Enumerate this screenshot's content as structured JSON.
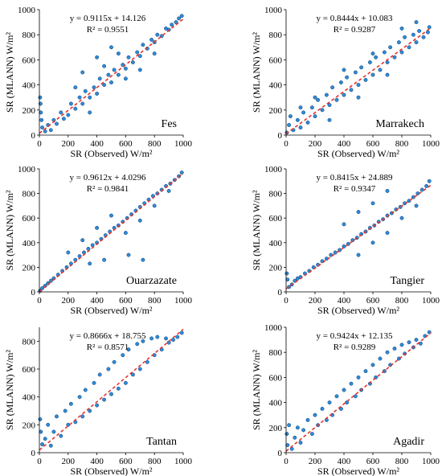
{
  "figure": {
    "panel_positions": [
      "top-left",
      "top-right",
      "middle-left",
      "middle-right",
      "bottom-left",
      "bottom-right"
    ],
    "marker_fill": "#2e8bd8",
    "marker_edge": "#0b3b6e",
    "fit_line_color": "#e3342f"
  },
  "chart_data": [
    {
      "type": "scatter",
      "site": "Fes",
      "equation": "y = 0.9115x + 14.126",
      "r2": "R² = 0.9551",
      "xlabel": "SR (Observed) W/m²",
      "ylabel": "SR (MLANN) W/m²",
      "xlim": [
        0,
        1000
      ],
      "ylim": [
        0,
        1000
      ],
      "xticks": [
        0,
        200,
        400,
        600,
        800,
        1000
      ],
      "yticks": [
        0,
        200,
        400,
        600,
        800,
        1000
      ],
      "fit": {
        "slope": 0.9115,
        "intercept": 14.126
      },
      "grid": false,
      "points": [
        [
          5,
          300
        ],
        [
          8,
          250
        ],
        [
          10,
          180
        ],
        [
          15,
          120
        ],
        [
          20,
          60
        ],
        [
          40,
          30
        ],
        [
          60,
          80
        ],
        [
          80,
          40
        ],
        [
          100,
          120
        ],
        [
          120,
          90
        ],
        [
          150,
          180
        ],
        [
          170,
          130
        ],
        [
          200,
          160
        ],
        [
          220,
          250
        ],
        [
          250,
          210
        ],
        [
          280,
          300
        ],
        [
          300,
          250
        ],
        [
          320,
          350
        ],
        [
          350,
          300
        ],
        [
          380,
          380
        ],
        [
          400,
          330
        ],
        [
          420,
          450
        ],
        [
          450,
          400
        ],
        [
          480,
          480
        ],
        [
          500,
          420
        ],
        [
          520,
          520
        ],
        [
          550,
          480
        ],
        [
          580,
          560
        ],
        [
          600,
          530
        ],
        [
          620,
          620
        ],
        [
          650,
          580
        ],
        [
          680,
          660
        ],
        [
          700,
          630
        ],
        [
          720,
          720
        ],
        [
          750,
          690
        ],
        [
          780,
          760
        ],
        [
          800,
          740
        ],
        [
          820,
          800
        ],
        [
          850,
          790
        ],
        [
          880,
          850
        ],
        [
          900,
          840
        ],
        [
          920,
          880
        ],
        [
          950,
          900
        ],
        [
          970,
          930
        ],
        [
          990,
          950
        ],
        [
          300,
          500
        ],
        [
          400,
          620
        ],
        [
          500,
          700
        ],
        [
          600,
          450
        ],
        [
          700,
          520
        ],
        [
          800,
          650
        ],
        [
          250,
          380
        ],
        [
          350,
          180
        ],
        [
          450,
          550
        ],
        [
          550,
          650
        ]
      ]
    },
    {
      "type": "scatter",
      "site": "Marrakech",
      "equation": "y = 0.8444x + 10.083",
      "r2": "R² = 0.9287",
      "xlabel": "SR (Observed) W/m²",
      "ylabel": "SR (MLANN) W/m²",
      "xlim": [
        0,
        1000
      ],
      "ylim": [
        0,
        1000
      ],
      "xticks": [
        0,
        200,
        400,
        600,
        800,
        1000
      ],
      "yticks": [
        0,
        200,
        400,
        600,
        800,
        1000
      ],
      "fit": {
        "slope": 0.8444,
        "intercept": 10.083
      },
      "grid": false,
      "points": [
        [
          5,
          20
        ],
        [
          20,
          80
        ],
        [
          30,
          150
        ],
        [
          50,
          40
        ],
        [
          80,
          120
        ],
        [
          100,
          60
        ],
        [
          120,
          180
        ],
        [
          150,
          100
        ],
        [
          180,
          220
        ],
        [
          200,
          150
        ],
        [
          220,
          280
        ],
        [
          250,
          200
        ],
        [
          280,
          320
        ],
        [
          300,
          240
        ],
        [
          320,
          380
        ],
        [
          350,
          280
        ],
        [
          380,
          420
        ],
        [
          400,
          320
        ],
        [
          420,
          460
        ],
        [
          450,
          360
        ],
        [
          480,
          500
        ],
        [
          500,
          400
        ],
        [
          520,
          540
        ],
        [
          550,
          440
        ],
        [
          580,
          580
        ],
        [
          600,
          480
        ],
        [
          620,
          620
        ],
        [
          650,
          520
        ],
        [
          680,
          660
        ],
        [
          700,
          580
        ],
        [
          720,
          700
        ],
        [
          750,
          620
        ],
        [
          780,
          740
        ],
        [
          800,
          660
        ],
        [
          820,
          780
        ],
        [
          850,
          700
        ],
        [
          880,
          800
        ],
        [
          900,
          740
        ],
        [
          920,
          830
        ],
        [
          950,
          780
        ],
        [
          980,
          820
        ],
        [
          990,
          860
        ],
        [
          100,
          220
        ],
        [
          200,
          300
        ],
        [
          300,
          120
        ],
        [
          400,
          520
        ],
        [
          500,
          300
        ],
        [
          600,
          650
        ],
        [
          700,
          480
        ],
        [
          800,
          850
        ],
        [
          900,
          900
        ]
      ]
    },
    {
      "type": "scatter",
      "site": "Ouarzazate",
      "equation": "y = 0.9612x + 4.0296",
      "r2": "R² = 0.9841",
      "xlabel": "SR (Observed) W/m²",
      "ylabel": "SR (MLANN) W/m²",
      "xlim": [
        0,
        1000
      ],
      "ylim": [
        0,
        1000
      ],
      "xticks": [
        0,
        200,
        400,
        600,
        800,
        1000
      ],
      "yticks": [
        0,
        200,
        400,
        600,
        800,
        1000
      ],
      "fit": {
        "slope": 0.9612,
        "intercept": 4.0296
      },
      "grid": false,
      "points": [
        [
          5,
          10
        ],
        [
          20,
          30
        ],
        [
          40,
          50
        ],
        [
          60,
          70
        ],
        [
          80,
          90
        ],
        [
          100,
          110
        ],
        [
          130,
          140
        ],
        [
          160,
          170
        ],
        [
          190,
          200
        ],
        [
          220,
          230
        ],
        [
          250,
          260
        ],
        [
          280,
          290
        ],
        [
          310,
          320
        ],
        [
          340,
          350
        ],
        [
          370,
          380
        ],
        [
          400,
          400
        ],
        [
          430,
          430
        ],
        [
          460,
          460
        ],
        [
          490,
          490
        ],
        [
          520,
          520
        ],
        [
          550,
          540
        ],
        [
          580,
          570
        ],
        [
          610,
          600
        ],
        [
          640,
          630
        ],
        [
          670,
          660
        ],
        [
          700,
          690
        ],
        [
          730,
          720
        ],
        [
          760,
          750
        ],
        [
          790,
          780
        ],
        [
          820,
          800
        ],
        [
          850,
          830
        ],
        [
          880,
          860
        ],
        [
          910,
          880
        ],
        [
          940,
          910
        ],
        [
          970,
          940
        ],
        [
          990,
          970
        ],
        [
          200,
          320
        ],
        [
          300,
          420
        ],
        [
          400,
          520
        ],
        [
          500,
          620
        ],
        [
          600,
          480
        ],
        [
          700,
          580
        ],
        [
          800,
          700
        ],
        [
          900,
          820
        ],
        [
          620,
          300
        ],
        [
          720,
          260
        ],
        [
          450,
          260
        ],
        [
          350,
          230
        ]
      ]
    },
    {
      "type": "scatter",
      "site": "Tangier",
      "equation": "y = 0.8415x + 24.889",
      "r2": "R² = 0.9347",
      "xlabel": "SR (Observed) W/m²",
      "ylabel": "SR (MLANN) W/m²",
      "xlim": [
        0,
        1000
      ],
      "ylim": [
        0,
        1000
      ],
      "xticks": [
        0,
        200,
        400,
        600,
        800,
        1000
      ],
      "yticks": [
        0,
        200,
        400,
        600,
        800,
        1000
      ],
      "fit": {
        "slope": 0.8415,
        "intercept": 24.889
      },
      "grid": false,
      "points": [
        [
          5,
          150
        ],
        [
          10,
          100
        ],
        [
          20,
          40
        ],
        [
          40,
          60
        ],
        [
          60,
          90
        ],
        [
          80,
          110
        ],
        [
          100,
          120
        ],
        [
          130,
          150
        ],
        [
          160,
          170
        ],
        [
          190,
          200
        ],
        [
          220,
          220
        ],
        [
          250,
          250
        ],
        [
          280,
          270
        ],
        [
          310,
          300
        ],
        [
          340,
          320
        ],
        [
          370,
          340
        ],
        [
          400,
          370
        ],
        [
          430,
          390
        ],
        [
          460,
          420
        ],
        [
          490,
          440
        ],
        [
          520,
          470
        ],
        [
          550,
          490
        ],
        [
          580,
          520
        ],
        [
          610,
          540
        ],
        [
          640,
          570
        ],
        [
          670,
          590
        ],
        [
          700,
          620
        ],
        [
          730,
          640
        ],
        [
          760,
          670
        ],
        [
          790,
          690
        ],
        [
          820,
          720
        ],
        [
          850,
          740
        ],
        [
          880,
          770
        ],
        [
          910,
          800
        ],
        [
          940,
          830
        ],
        [
          970,
          860
        ],
        [
          990,
          900
        ],
        [
          400,
          550
        ],
        [
          500,
          650
        ],
        [
          600,
          720
        ],
        [
          700,
          820
        ],
        [
          500,
          300
        ],
        [
          600,
          400
        ],
        [
          700,
          480
        ],
        [
          800,
          600
        ],
        [
          900,
          700
        ]
      ]
    },
    {
      "type": "scatter",
      "site": "Tantan",
      "equation": "y = 0.8666x + 18.755",
      "r2": "R² = 0.8571",
      "xlabel": "SR (Observed) W/m²",
      "ylabel": "SR (MLANN) W/m²",
      "xlim": [
        0,
        1000
      ],
      "ylim": [
        0,
        900
      ],
      "xticks": [
        0,
        200,
        400,
        600,
        800,
        1000
      ],
      "yticks": [
        0,
        200,
        400,
        600,
        800
      ],
      "fit": {
        "slope": 0.8666,
        "intercept": 18.755
      },
      "grid": false,
      "points": [
        [
          5,
          240
        ],
        [
          10,
          150
        ],
        [
          20,
          60
        ],
        [
          40,
          100
        ],
        [
          60,
          200
        ],
        [
          80,
          50
        ],
        [
          100,
          150
        ],
        [
          120,
          260
        ],
        [
          150,
          120
        ],
        [
          180,
          300
        ],
        [
          200,
          200
        ],
        [
          220,
          350
        ],
        [
          250,
          220
        ],
        [
          280,
          400
        ],
        [
          300,
          260
        ],
        [
          320,
          450
        ],
        [
          350,
          300
        ],
        [
          380,
          500
        ],
        [
          400,
          340
        ],
        [
          420,
          560
        ],
        [
          450,
          380
        ],
        [
          480,
          600
        ],
        [
          500,
          420
        ],
        [
          520,
          650
        ],
        [
          550,
          460
        ],
        [
          580,
          700
        ],
        [
          600,
          500
        ],
        [
          620,
          740
        ],
        [
          650,
          560
        ],
        [
          680,
          780
        ],
        [
          700,
          600
        ],
        [
          720,
          800
        ],
        [
          750,
          650
        ],
        [
          780,
          820
        ],
        [
          800,
          700
        ],
        [
          820,
          830
        ],
        [
          850,
          740
        ],
        [
          880,
          820
        ],
        [
          900,
          790
        ],
        [
          930,
          810
        ],
        [
          960,
          830
        ],
        [
          990,
          860
        ]
      ]
    },
    {
      "type": "scatter",
      "site": "Agadir",
      "equation": "y = 0.9424x + 12.135",
      "r2": "R² = 0.9289",
      "xlabel": "SR (Observed) W/m²",
      "ylabel": "SR (MLANN) W/m²",
      "xlim": [
        0,
        1000
      ],
      "ylim": [
        0,
        1000
      ],
      "xticks": [
        0,
        200,
        400,
        600,
        800,
        1000
      ],
      "yticks": [
        0,
        200,
        400,
        600,
        800,
        1000
      ],
      "fit": {
        "slope": 0.9424,
        "intercept": 12.135
      },
      "grid": false,
      "points": [
        [
          5,
          150
        ],
        [
          10,
          60
        ],
        [
          20,
          220
        ],
        [
          40,
          30
        ],
        [
          60,
          120
        ],
        [
          80,
          200
        ],
        [
          100,
          80
        ],
        [
          120,
          180
        ],
        [
          150,
          260
        ],
        [
          180,
          150
        ],
        [
          200,
          300
        ],
        [
          220,
          220
        ],
        [
          250,
          350
        ],
        [
          280,
          260
        ],
        [
          300,
          400
        ],
        [
          320,
          300
        ],
        [
          350,
          450
        ],
        [
          380,
          350
        ],
        [
          400,
          500
        ],
        [
          420,
          400
        ],
        [
          450,
          550
        ],
        [
          480,
          450
        ],
        [
          500,
          600
        ],
        [
          520,
          500
        ],
        [
          550,
          650
        ],
        [
          580,
          550
        ],
        [
          600,
          700
        ],
        [
          620,
          600
        ],
        [
          650,
          750
        ],
        [
          680,
          650
        ],
        [
          700,
          800
        ],
        [
          720,
          700
        ],
        [
          750,
          830
        ],
        [
          780,
          750
        ],
        [
          800,
          860
        ],
        [
          820,
          790
        ],
        [
          850,
          880
        ],
        [
          880,
          840
        ],
        [
          900,
          900
        ],
        [
          930,
          870
        ],
        [
          960,
          930
        ],
        [
          990,
          960
        ]
      ]
    }
  ]
}
